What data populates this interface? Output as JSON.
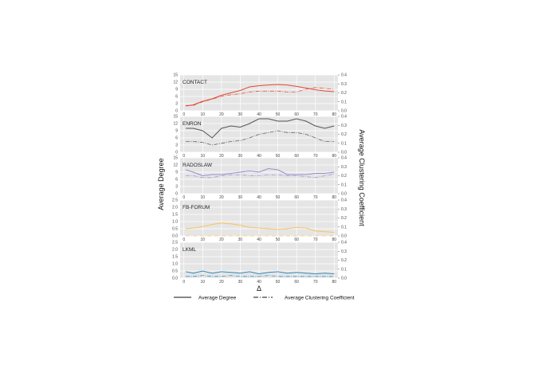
{
  "chart_data": {
    "type": "line",
    "xlabel": "Δ",
    "ylabel_left": "Average Degree",
    "ylabel_right": "Average Clustering Coefficient",
    "x_ticks": [
      0,
      10,
      20,
      30,
      40,
      50,
      60,
      70,
      80
    ],
    "xlim": [
      -2,
      82
    ],
    "grid": true,
    "legend": {
      "position": "bottom",
      "entries": [
        {
          "label": "Average Degree",
          "style": "solid"
        },
        {
          "label": "Average Clustering Coefficient",
          "style": "dashdot"
        }
      ]
    },
    "panels": [
      {
        "name": "CONTACT",
        "color": "#e24a33",
        "ylim_left": [
          0,
          15
        ],
        "yticks_left": [
          0,
          3,
          6,
          9,
          12,
          15
        ],
        "ylim_right": [
          0,
          0.4
        ],
        "yticks_right": [
          "0.0",
          "0.1",
          "0.2",
          "0.3",
          "0.4"
        ],
        "x": [
          1,
          5,
          10,
          15,
          20,
          25,
          30,
          35,
          40,
          45,
          50,
          55,
          60,
          65,
          70,
          75,
          80
        ],
        "avg_degree": [
          2,
          2.5,
          4,
          5,
          6.5,
          7.5,
          8.5,
          10,
          10.5,
          10.8,
          11,
          10.8,
          10.2,
          9.5,
          8.8,
          8.3,
          8
        ],
        "avg_clustering": [
          0.06,
          0.06,
          0.1,
          0.13,
          0.16,
          0.18,
          0.19,
          0.21,
          0.22,
          0.22,
          0.22,
          0.21,
          0.21,
          0.24,
          0.26,
          0.25,
          0.24
        ]
      },
      {
        "name": "ENRON",
        "color": "#555555",
        "ylim_left": [
          0,
          15
        ],
        "yticks_left": [
          0,
          3,
          6,
          9,
          12,
          15
        ],
        "ylim_right": [
          0,
          0.4
        ],
        "yticks_right": [
          "0.0",
          "0.1",
          "0.2",
          "0.3",
          "0.4"
        ],
        "x": [
          1,
          5,
          10,
          15,
          20,
          25,
          30,
          35,
          40,
          45,
          50,
          55,
          60,
          65,
          70,
          75,
          80
        ],
        "avg_degree": [
          10,
          10,
          9,
          6,
          10,
          11,
          10.5,
          12,
          14,
          14,
          13,
          13,
          14,
          13,
          11,
          10,
          11
        ],
        "avg_clustering": [
          0.12,
          0.12,
          0.11,
          0.08,
          0.1,
          0.12,
          0.13,
          0.16,
          0.2,
          0.22,
          0.24,
          0.22,
          0.22,
          0.2,
          0.16,
          0.12,
          0.12
        ]
      },
      {
        "name": "RADOSLAW",
        "color": "#988ed5",
        "ylim_left": [
          0,
          15
        ],
        "yticks_left": [
          0,
          3,
          6,
          9,
          12,
          15
        ],
        "ylim_right": [
          0,
          0.4
        ],
        "yticks_right": [
          "0.0",
          "0.1",
          "0.2",
          "0.3",
          "0.4"
        ],
        "x": [
          1,
          5,
          10,
          15,
          20,
          25,
          30,
          35,
          40,
          45,
          50,
          55,
          60,
          65,
          70,
          75,
          80
        ],
        "avg_degree": [
          10,
          9,
          7.5,
          8,
          8,
          8.5,
          9,
          9.5,
          9,
          10.5,
          10,
          8,
          8,
          8,
          8.5,
          8.5,
          9
        ],
        "avg_clustering": [
          0.2,
          0.2,
          0.18,
          0.18,
          0.2,
          0.21,
          0.21,
          0.2,
          0.2,
          0.21,
          0.21,
          0.2,
          0.2,
          0.19,
          0.18,
          0.2,
          0.22
        ]
      },
      {
        "name": "FB-FORUM",
        "color": "#fbc15e",
        "ylim_left": [
          0,
          2.5
        ],
        "yticks_left": [
          "0.0",
          "0.5",
          "1.0",
          "1.5",
          "2.0",
          "2.5"
        ],
        "ylim_right": [
          0,
          0.4
        ],
        "yticks_right": [
          "0.0",
          "0.1",
          "0.2",
          "0.3",
          "0.4"
        ],
        "x": [
          1,
          5,
          10,
          15,
          20,
          25,
          30,
          35,
          40,
          45,
          50,
          55,
          60,
          65,
          70,
          75,
          80
        ],
        "avg_degree": [
          0.5,
          0.55,
          0.65,
          0.8,
          0.9,
          0.85,
          0.75,
          0.6,
          0.55,
          0.5,
          0.45,
          0.5,
          0.6,
          0.55,
          0.35,
          0.3,
          0.25
        ],
        "avg_clustering": [
          0.0,
          0.0,
          0.0,
          0.0,
          0.0,
          0.0,
          0.0,
          0.0,
          0.0,
          0.0,
          0.0,
          0.0,
          0.0,
          0.0,
          0.0,
          0.0,
          0.0
        ]
      },
      {
        "name": "LKML",
        "color": "#348abd",
        "ylim_left": [
          0,
          2.5
        ],
        "yticks_left": [
          "0.0",
          "0.5",
          "1.0",
          "1.5",
          "2.0",
          "2.5"
        ],
        "ylim_right": [
          0,
          0.4
        ],
        "yticks_right": [
          "0.0",
          "0.1",
          "0.2",
          "0.3",
          "0.4"
        ],
        "x": [
          1,
          5,
          10,
          15,
          20,
          25,
          30,
          35,
          40,
          45,
          50,
          55,
          60,
          65,
          70,
          75,
          80
        ],
        "avg_degree": [
          0.45,
          0.35,
          0.5,
          0.35,
          0.45,
          0.4,
          0.35,
          0.45,
          0.3,
          0.4,
          0.45,
          0.35,
          0.4,
          0.35,
          0.3,
          0.35,
          0.3
        ],
        "avg_clustering": [
          0.02,
          0.02,
          0.03,
          0.02,
          0.02,
          0.03,
          0.02,
          0.02,
          0.02,
          0.03,
          0.02,
          0.02,
          0.02,
          0.02,
          0.02,
          0.02,
          0.02
        ]
      }
    ]
  }
}
